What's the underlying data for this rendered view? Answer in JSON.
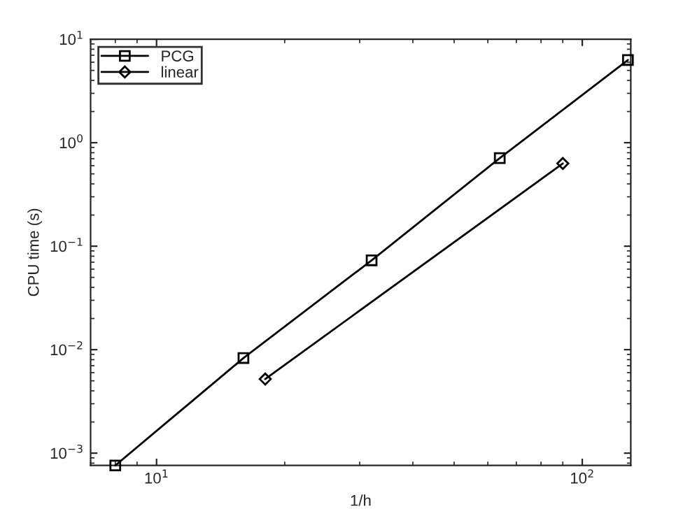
{
  "chart_data": {
    "type": "line",
    "xlabel": "1/h",
    "ylabel": "CPU time (s)",
    "log": "xy",
    "xlim": [
      7,
      130
    ],
    "ylim": [
      0.00076,
      10
    ],
    "xticks": [
      {
        "value": 10,
        "label": "10$^{1}$"
      },
      {
        "value": 100,
        "label": "10$^{2}$"
      }
    ],
    "yticks": [
      {
        "value": 0.001,
        "label": "10$^{−3}$"
      },
      {
        "value": 0.01,
        "label": "10$^{−2}$"
      },
      {
        "value": 0.1,
        "label": "10$^{−1}$"
      },
      {
        "value": 1,
        "label": "10$^{0}$"
      },
      {
        "value": 10,
        "label": "10$^{1}$"
      }
    ],
    "grid": false,
    "legend": "top left",
    "line_style": "solid",
    "series": [
      {
        "name": "PCG",
        "color": "#000000",
        "marker": "square",
        "x": [
          8,
          16,
          32,
          64,
          128
        ],
        "values": [
          0.00076,
          0.0083,
          0.073,
          0.71,
          6.3
        ]
      },
      {
        "name": "linear",
        "color": "#000000",
        "marker": "diamond",
        "x": [
          18,
          90
        ],
        "values": [
          0.0052,
          0.63
        ]
      }
    ]
  }
}
